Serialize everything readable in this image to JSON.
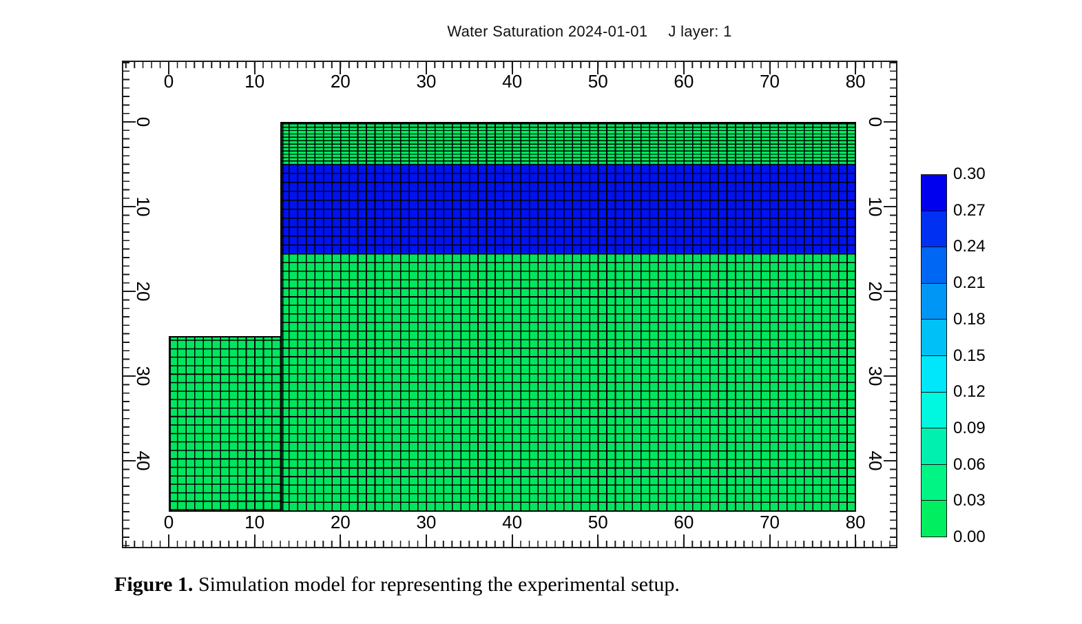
{
  "title": {
    "text": "Water Saturation 2024-01-01",
    "layer": "J layer: 1"
  },
  "axes": {
    "x_tick_labels": [
      "0",
      "10",
      "20",
      "30",
      "40",
      "50",
      "60",
      "70",
      "80"
    ],
    "y_tick_labels": [
      "0",
      "10",
      "20",
      "30",
      "40"
    ]
  },
  "colorbar": {
    "tick_labels": [
      "0.30",
      "0.27",
      "0.24",
      "0.21",
      "0.18",
      "0.15",
      "0.12",
      "0.09",
      "0.06",
      "0.03",
      "0.00"
    ],
    "segment_colors_top_to_bottom": [
      "#0000EE",
      "#0030F2",
      "#0066F4",
      "#0096F6",
      "#00C0F8",
      "#00E6FA",
      "#00F8E0",
      "#00F0B0",
      "#00F584",
      "#00EE60"
    ]
  },
  "grid_colors": {
    "low_saturation_green": "#00E660",
    "high_saturation_blue": "#0012EF",
    "grid_line": "#000000"
  },
  "caption": {
    "label": "Figure 1.",
    "text": " Simulation model for representing the experimental setup."
  },
  "chart_data": {
    "type": "heatmap",
    "title": "Water Saturation 2024-01-01  J layer: 1",
    "xlabel": "",
    "ylabel": "",
    "x_range": [
      0,
      80
    ],
    "y_range": [
      0,
      46
    ],
    "y_inverted": true,
    "x_ticks": [
      0,
      10,
      20,
      30,
      40,
      50,
      60,
      70,
      80
    ],
    "y_ticks": [
      0,
      10,
      20,
      30,
      40
    ],
    "colorbar_range": [
      0.0,
      0.3
    ],
    "colorbar_step": 0.03,
    "legend_position": "right",
    "grid": "cell-mesh",
    "regions": [
      {
        "label": "upper green band",
        "x": [
          13,
          80
        ],
        "y": [
          0,
          5
        ],
        "water_saturation": 0.0,
        "rows": 12
      },
      {
        "label": "high saturation blue band",
        "x": [
          13,
          80
        ],
        "y": [
          5,
          15.5
        ],
        "water_saturation": 0.3,
        "rows": 10
      },
      {
        "label": "main lower green block",
        "x": [
          13,
          80
        ],
        "y": [
          15.5,
          46
        ],
        "water_saturation": 0.0
      },
      {
        "label": "left green extension",
        "x": [
          0,
          13
        ],
        "y": [
          25,
          46
        ],
        "water_saturation": 0.0
      }
    ]
  }
}
